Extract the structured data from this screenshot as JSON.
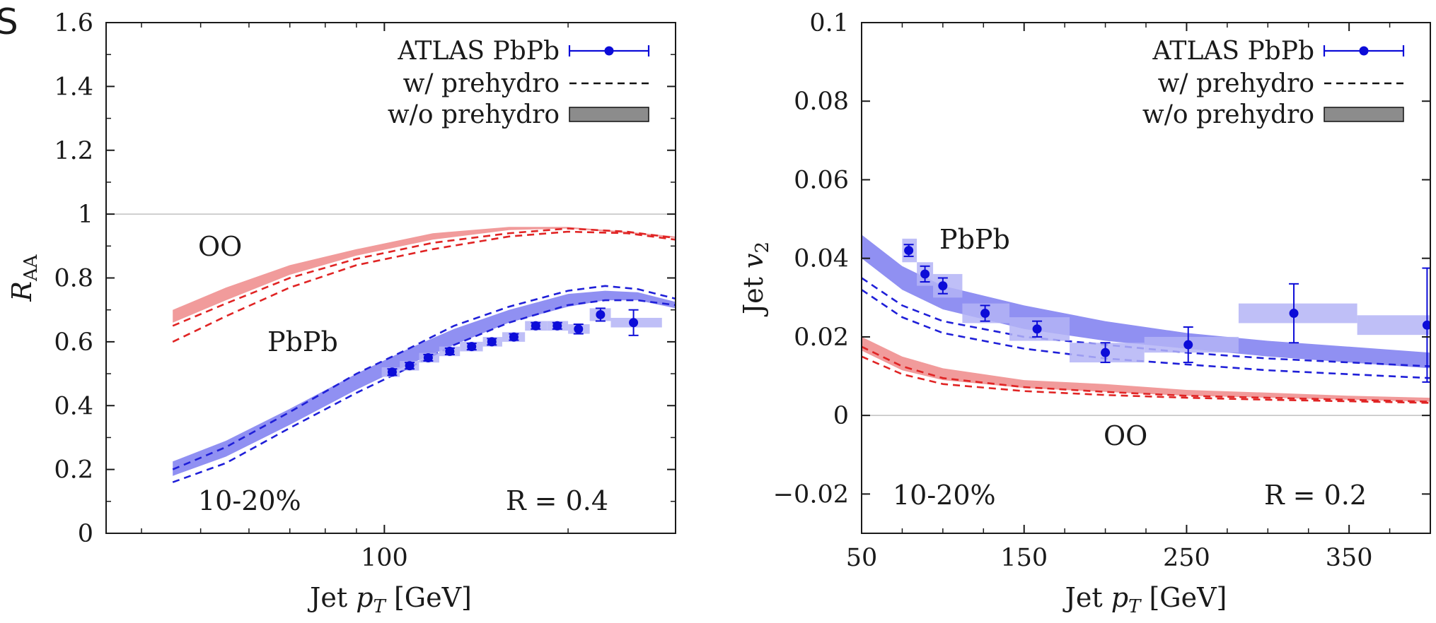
{
  "figure": {
    "panel_letter": "S"
  },
  "colors": {
    "pbpb_band": "#7c7cf0",
    "pbpb_dash": "#1f1fd8",
    "oo_band": "#ee8a8a",
    "oo_dash": "#e02424",
    "data": "#0c0cd8",
    "sys_box": "#b4b4f6",
    "legend_box": "#8c8c8c",
    "axis": "#1a1a1a",
    "refline": "#c0c0c0"
  },
  "chart_data": [
    {
      "type": "line",
      "xlabel": "Jet p_T [GeV]",
      "ylabel": "R_AA",
      "xscale": "log",
      "xlim": [
        35,
        300
      ],
      "ylim": [
        0,
        1.6
      ],
      "yticks": [
        "0",
        "0.2",
        "0.4",
        "0.6",
        "0.8",
        "1",
        "1.2",
        "1.4",
        "1.6"
      ],
      "yticks_values": [
        0,
        0.2,
        0.4,
        0.6,
        0.8,
        1.0,
        1.2,
        1.4,
        1.6
      ],
      "xticks": [
        "100"
      ],
      "xticks_values": [
        100
      ],
      "reference_line": 1.0,
      "legend": {
        "position": "top-right",
        "entries": [
          "ATLAS PbPb",
          "w/ prehydro",
          "w/o prehydro"
        ]
      },
      "annotations": {
        "oo": "OO",
        "pbpb": "PbPb",
        "centrality": "10-20%",
        "radius": "R = 0.4"
      },
      "series": [
        {
          "name": "w/o prehydro",
          "system": "OO",
          "style": "band",
          "x": [
            45,
            55,
            70,
            90,
            120,
            160,
            200,
            250,
            300
          ],
          "y_low": [
            0.66,
            0.73,
            0.81,
            0.87,
            0.92,
            0.95,
            0.955,
            0.94,
            0.925
          ],
          "y_high": [
            0.7,
            0.77,
            0.84,
            0.89,
            0.94,
            0.96,
            0.96,
            0.945,
            0.93
          ]
        },
        {
          "name": "w/ prehydro",
          "system": "OO",
          "style": "dashed",
          "x": [
            45,
            55,
            70,
            90,
            120,
            160,
            200,
            250,
            300
          ],
          "y": [
            0.65,
            0.72,
            0.8,
            0.86,
            0.91,
            0.94,
            0.955,
            0.945,
            0.925
          ]
        },
        {
          "name": "w/ prehydro",
          "system": "OO",
          "style": "dashed",
          "x": [
            45,
            55,
            70,
            90,
            120,
            160,
            200,
            250,
            300
          ],
          "y": [
            0.6,
            0.68,
            0.77,
            0.84,
            0.89,
            0.93,
            0.945,
            0.94,
            0.92
          ]
        },
        {
          "name": "w/o prehydro",
          "system": "PbPb",
          "style": "band",
          "x": [
            45,
            55,
            70,
            90,
            110,
            130,
            160,
            200,
            230,
            260,
            300
          ],
          "y_low": [
            0.18,
            0.24,
            0.34,
            0.45,
            0.53,
            0.59,
            0.66,
            0.71,
            0.73,
            0.73,
            0.705
          ],
          "y_high": [
            0.225,
            0.29,
            0.39,
            0.5,
            0.58,
            0.64,
            0.7,
            0.75,
            0.76,
            0.755,
            0.725
          ]
        },
        {
          "name": "w/ prehydro",
          "system": "PbPb",
          "style": "dashed",
          "x": [
            45,
            55,
            70,
            90,
            110,
            130,
            160,
            200,
            230,
            260,
            300
          ],
          "y": [
            0.2,
            0.27,
            0.38,
            0.5,
            0.58,
            0.65,
            0.71,
            0.76,
            0.775,
            0.765,
            0.735
          ]
        },
        {
          "name": "w/ prehydro",
          "system": "PbPb",
          "style": "dashed",
          "x": [
            45,
            55,
            70,
            90,
            110,
            130,
            160,
            200,
            230,
            260,
            300
          ],
          "y": [
            0.16,
            0.22,
            0.33,
            0.44,
            0.52,
            0.59,
            0.66,
            0.715,
            0.73,
            0.73,
            0.715
          ]
        },
        {
          "name": "ATLAS PbPb",
          "system": "PbPb",
          "style": "points",
          "x": [
            103,
            110,
            118,
            128,
            139,
            150,
            163,
            177,
            192,
            208,
            226,
            256
          ],
          "y": [
            0.505,
            0.525,
            0.55,
            0.57,
            0.585,
            0.6,
            0.615,
            0.65,
            0.65,
            0.64,
            0.685,
            0.66
          ],
          "err": [
            0.01,
            0.01,
            0.01,
            0.01,
            0.01,
            0.01,
            0.01,
            0.01,
            0.01,
            0.015,
            0.02,
            0.04
          ],
          "sys": [
            0.015,
            0.015,
            0.015,
            0.015,
            0.015,
            0.015,
            0.015,
            0.015,
            0.015,
            0.015,
            0.02,
            0.015
          ],
          "x_lo": [
            99,
            106,
            114,
            123,
            133,
            145,
            156,
            170,
            185,
            200,
            217,
            235
          ],
          "x_hi": [
            106,
            114,
            123,
            133,
            145,
            156,
            170,
            185,
            200,
            217,
            235,
            285
          ]
        }
      ]
    },
    {
      "type": "line",
      "xlabel": "Jet p_T [GeV]",
      "ylabel": "Jet v_2",
      "xlim": [
        50,
        400
      ],
      "ylim": [
        -0.03,
        0.1
      ],
      "yticks": [
        "−0.02",
        "0",
        "0.02",
        "0.04",
        "0.06",
        "0.08",
        "0.1"
      ],
      "yticks_values": [
        -0.02,
        0,
        0.02,
        0.04,
        0.06,
        0.08,
        0.1
      ],
      "xticks": [
        "50",
        "150",
        "250",
        "350"
      ],
      "xticks_values": [
        50,
        150,
        250,
        350
      ],
      "reference_line": 0,
      "legend": {
        "position": "top-right",
        "entries": [
          "ATLAS PbPb",
          "w/ prehydro",
          "w/o prehydro"
        ]
      },
      "annotations": {
        "oo": "OO",
        "pbpb": "PbPb",
        "centrality": "10-20%",
        "radius": "R = 0.2"
      },
      "series": [
        {
          "name": "w/o prehydro",
          "system": "PbPb",
          "style": "band",
          "x": [
            50,
            75,
            100,
            150,
            200,
            250,
            300,
            350,
            400
          ],
          "y_low": [
            0.04,
            0.032,
            0.027,
            0.022,
            0.019,
            0.017,
            0.015,
            0.0135,
            0.012
          ],
          "y_high": [
            0.046,
            0.038,
            0.033,
            0.028,
            0.024,
            0.021,
            0.019,
            0.0175,
            0.016
          ]
        },
        {
          "name": "w/ prehydro",
          "system": "PbPb",
          "style": "dashed",
          "x": [
            50,
            75,
            100,
            150,
            200,
            250,
            300,
            350,
            400
          ],
          "y": [
            0.035,
            0.028,
            0.024,
            0.02,
            0.018,
            0.016,
            0.0145,
            0.0135,
            0.0125
          ]
        },
        {
          "name": "w/ prehydro",
          "system": "PbPb",
          "style": "dashed",
          "x": [
            50,
            75,
            100,
            150,
            200,
            250,
            300,
            350,
            400
          ],
          "y": [
            0.032,
            0.025,
            0.021,
            0.017,
            0.0145,
            0.013,
            0.0115,
            0.0105,
            0.0095
          ]
        },
        {
          "name": "w/o prehydro",
          "system": "OO",
          "style": "band",
          "x": [
            50,
            75,
            100,
            150,
            200,
            250,
            300,
            350,
            400
          ],
          "y_low": [
            0.0165,
            0.0115,
            0.009,
            0.007,
            0.006,
            0.005,
            0.0045,
            0.004,
            0.0035
          ],
          "y_high": [
            0.02,
            0.015,
            0.012,
            0.009,
            0.008,
            0.0065,
            0.0058,
            0.005,
            0.0045
          ]
        },
        {
          "name": "w/ prehydro",
          "system": "OO",
          "style": "dashed",
          "x": [
            50,
            75,
            100,
            150,
            200,
            250,
            300,
            350,
            400
          ],
          "y": [
            0.0175,
            0.0125,
            0.0095,
            0.0072,
            0.006,
            0.005,
            0.0045,
            0.004,
            0.0035
          ]
        },
        {
          "name": "w/ prehydro",
          "system": "OO",
          "style": "dashed",
          "x": [
            50,
            75,
            100,
            150,
            200,
            250,
            300,
            350,
            400
          ],
          "y": [
            0.015,
            0.0105,
            0.008,
            0.0062,
            0.0052,
            0.0045,
            0.004,
            0.0036,
            0.0032
          ]
        },
        {
          "name": "ATLAS PbPb",
          "system": "PbPb",
          "style": "points",
          "x": [
            79,
            89,
            100,
            126,
            158,
            200,
            251,
            316,
            398
          ],
          "y": [
            0.042,
            0.036,
            0.033,
            0.026,
            0.022,
            0.016,
            0.018,
            0.026,
            0.023
          ],
          "err": [
            0.0015,
            0.002,
            0.002,
            0.002,
            0.002,
            0.0025,
            0.0045,
            0.0075,
            0.0145
          ],
          "sys": [
            0.003,
            0.003,
            0.003,
            0.0025,
            0.003,
            0.0025,
            0.002,
            0.0025,
            0.0025
          ],
          "x_lo": [
            75,
            84,
            94,
            112,
            141,
            178,
            224,
            282,
            355
          ],
          "x_hi": [
            84,
            94,
            112,
            141,
            178,
            224,
            282,
            355,
            400
          ]
        }
      ]
    }
  ]
}
